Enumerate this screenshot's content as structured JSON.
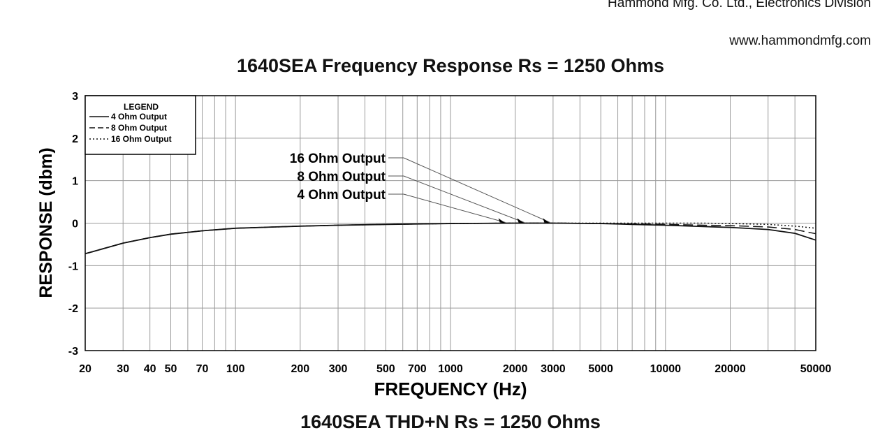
{
  "header": {
    "company": "Hammond Mfg. Co. Ltd., Electronics Division",
    "website": "www.hammondmfg.com"
  },
  "chart_data": {
    "type": "line",
    "title": "1640SEA Frequency Response Rs = 1250 Ohms",
    "xlabel": "FREQUENCY (Hz)",
    "ylabel": "RESPONSE (dbm)",
    "x_scale": "log",
    "xlim": [
      20,
      50000
    ],
    "ylim": [
      -3,
      3
    ],
    "grid": true,
    "x_ticks": [
      20,
      30,
      40,
      50,
      70,
      100,
      200,
      300,
      500,
      700,
      1000,
      2000,
      3000,
      5000,
      10000,
      20000,
      50000
    ],
    "y_ticks": [
      -3,
      -2,
      -1,
      0,
      1,
      2,
      3
    ],
    "legend": {
      "title": "LEGEND",
      "position": "top-left",
      "entries": [
        "4 Ohm Output",
        "8 Ohm Output",
        "16 Ohm Output"
      ]
    },
    "annotations": [
      {
        "text": "16 Ohm Output",
        "target_x": 2900,
        "target_y": 0
      },
      {
        "text": "8 Ohm Output",
        "target_x": 2200,
        "target_y": 0
      },
      {
        "text": "4 Ohm Output",
        "target_x": 1800,
        "target_y": 0
      }
    ],
    "series": [
      {
        "name": "4 Ohm Output",
        "style": "solid",
        "x": [
          20,
          30,
          40,
          50,
          70,
          100,
          200,
          300,
          500,
          700,
          1000,
          2000,
          3000,
          5000,
          7000,
          10000,
          15000,
          20000,
          30000,
          40000,
          50000
        ],
        "y": [
          -0.72,
          -0.47,
          -0.34,
          -0.26,
          -0.18,
          -0.12,
          -0.07,
          -0.05,
          -0.03,
          -0.02,
          -0.01,
          0.0,
          0.0,
          -0.01,
          -0.03,
          -0.05,
          -0.08,
          -0.1,
          -0.15,
          -0.24,
          -0.4
        ]
      },
      {
        "name": "8 Ohm Output",
        "style": "dashed",
        "x": [
          20,
          30,
          40,
          50,
          70,
          100,
          200,
          300,
          500,
          700,
          1000,
          2000,
          3000,
          5000,
          7000,
          10000,
          15000,
          20000,
          30000,
          40000,
          50000
        ],
        "y": [
          -0.72,
          -0.47,
          -0.34,
          -0.26,
          -0.18,
          -0.12,
          -0.07,
          -0.05,
          -0.03,
          -0.02,
          -0.01,
          0.0,
          0.0,
          -0.01,
          -0.02,
          -0.03,
          -0.05,
          -0.06,
          -0.09,
          -0.15,
          -0.25
        ]
      },
      {
        "name": "16 Ohm Output",
        "style": "dotted",
        "x": [
          20,
          30,
          40,
          50,
          70,
          100,
          200,
          300,
          500,
          700,
          1000,
          2000,
          3000,
          5000,
          7000,
          10000,
          15000,
          20000,
          30000,
          40000,
          50000
        ],
        "y": [
          -0.72,
          -0.47,
          -0.34,
          -0.26,
          -0.18,
          -0.12,
          -0.07,
          -0.05,
          -0.03,
          -0.02,
          -0.01,
          0.0,
          0.0,
          0.0,
          0.0,
          0.0,
          0.0,
          -0.01,
          -0.03,
          -0.07,
          -0.12
        ]
      }
    ]
  },
  "next_chart": {
    "title": "1640SEA THD+N Rs = 1250 Ohms"
  }
}
